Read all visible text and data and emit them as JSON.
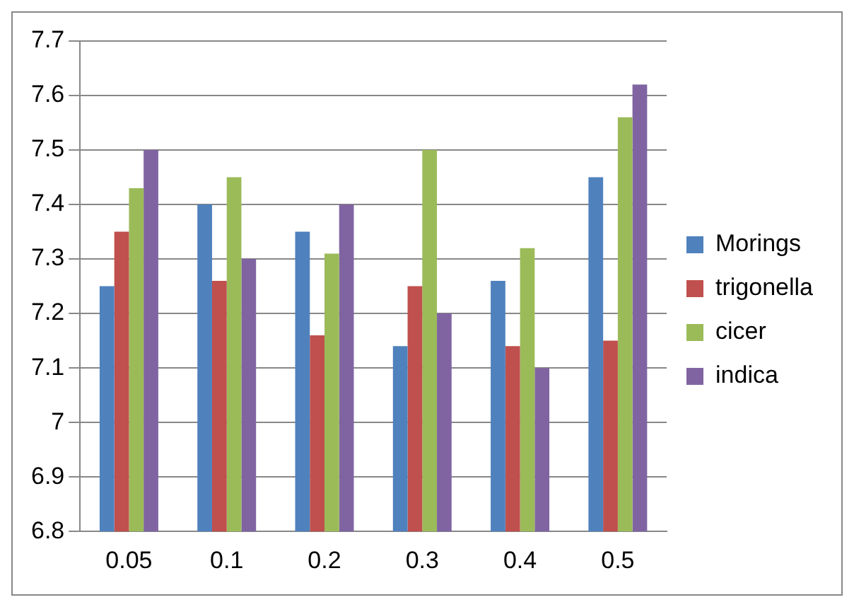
{
  "chart_data": {
    "type": "bar",
    "categories": [
      "0.05",
      "0.1",
      "0.2",
      "0.3",
      "0.4",
      "0.5"
    ],
    "series": [
      {
        "name": "Morings",
        "color": "#4f81bd",
        "values": [
          7.25,
          7.4,
          7.35,
          7.14,
          7.26,
          7.45
        ]
      },
      {
        "name": "trigonella",
        "color": "#c0504d",
        "values": [
          7.35,
          7.26,
          7.16,
          7.25,
          7.14,
          7.15
        ]
      },
      {
        "name": "cicer",
        "color": "#9bbb59",
        "values": [
          7.43,
          7.45,
          7.31,
          7.5,
          7.32,
          7.56
        ]
      },
      {
        "name": "indica",
        "color": "#8064a2",
        "values": [
          7.5,
          7.3,
          7.4,
          7.2,
          7.1,
          7.62
        ]
      }
    ],
    "ylim": [
      6.8,
      7.7
    ],
    "yticks": [
      6.8,
      6.9,
      7,
      7.1,
      7.2,
      7.3,
      7.4,
      7.5,
      7.6,
      7.7
    ],
    "grid": "y",
    "legend": "right"
  }
}
